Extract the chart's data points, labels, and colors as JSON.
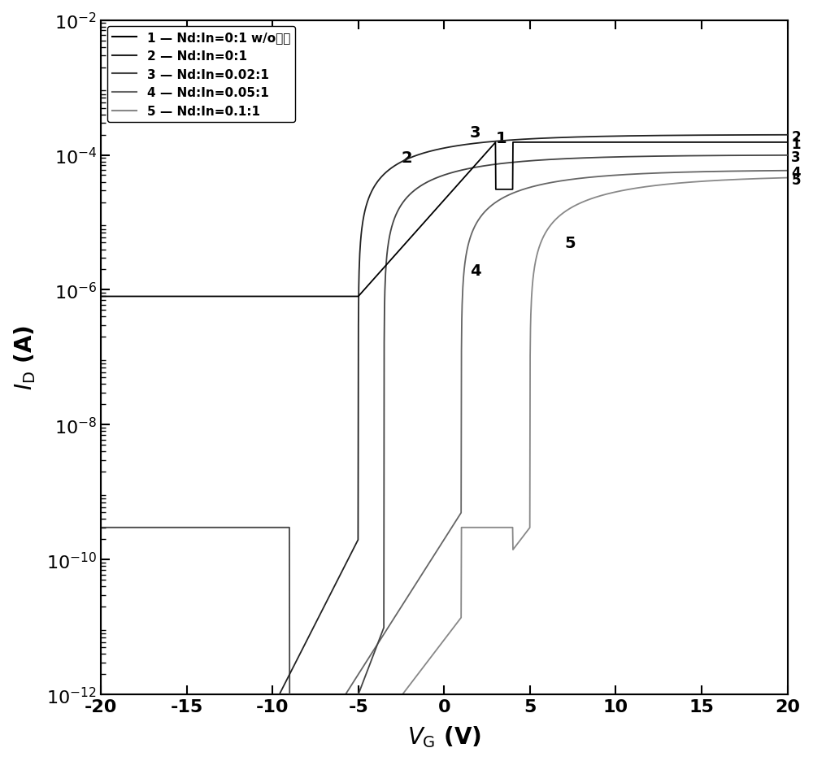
{
  "title": "",
  "xlabel_text": "$V$",
  "xlabel_sub": "G",
  "xlabel_unit": "(V)",
  "ylabel_text": "$I$",
  "ylabel_sub": "D",
  "ylabel_unit": "(A)",
  "xlim": [
    -20,
    20
  ],
  "ylim_log": [
    -12,
    -2
  ],
  "xticks": [
    -20,
    -15,
    -10,
    -5,
    0,
    5,
    10,
    15,
    20
  ],
  "legend_entries": [
    "1— Nd:In=0:1 w/o模式",
    "2— Nd:In=0:1",
    "3— Nd:In=0.02:1",
    "4— Nd:In=0.05:1",
    "5— Nd:In=0.1:1"
  ],
  "curve_colors": [
    "#000000",
    "#333333",
    "#555555",
    "#777777",
    "#999999"
  ],
  "curve_linewidths": [
    1.2,
    1.2,
    1.2,
    1.2,
    1.0
  ],
  "background_color": "#ffffff"
}
